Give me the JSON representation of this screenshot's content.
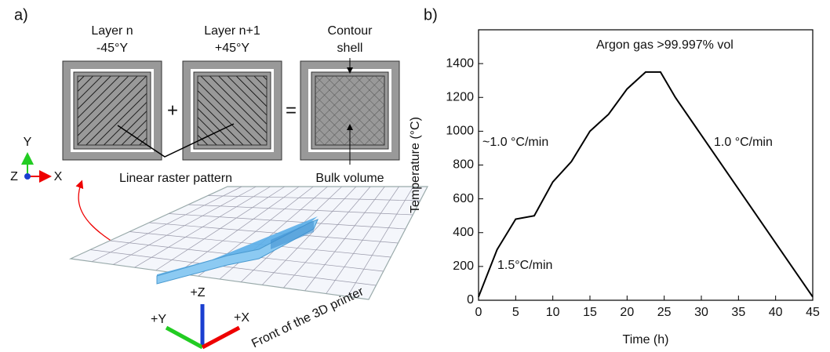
{
  "panel_labels": [
    "a)",
    "b)"
  ],
  "diagram": {
    "layers": [
      {
        "title": "Layer n",
        "angle": "-45°Y"
      },
      {
        "title": "Layer n+1",
        "angle": "+45°Y"
      },
      {
        "title": "Contour",
        "angle": "shell"
      }
    ],
    "operators": [
      "+",
      "="
    ],
    "raster_label": "Linear raster pattern",
    "bulk_label": "Bulk volume",
    "view_axes": [
      "Y",
      "Z",
      "X"
    ],
    "printer_axes": [
      "+Z",
      "+Y",
      "+X"
    ],
    "printer_label": "Front of the 3D printer"
  },
  "chart_data": {
    "type": "line",
    "x": [
      0,
      2.5,
      5,
      7.5,
      10,
      12.5,
      15,
      17.5,
      20,
      22.5,
      24.5,
      26.5,
      45
    ],
    "values": [
      20,
      300,
      480,
      500,
      700,
      820,
      1000,
      1100,
      1250,
      1350,
      1350,
      1200,
      20
    ],
    "color": "#000000",
    "xlabel": "Time (h)",
    "ylabel": "Temperature (°C)",
    "xlim": [
      0,
      45
    ],
    "ylim": [
      0,
      1600
    ],
    "xticks": [
      0,
      5,
      10,
      15,
      20,
      25,
      30,
      35,
      40,
      45
    ],
    "yticks": [
      0,
      200,
      400,
      600,
      800,
      1000,
      1200,
      1400
    ],
    "annotations": [
      "Argon gas >99.997% vol",
      "~1.0 °C/min",
      "1.0 °C/min",
      "1.5°C/min"
    ]
  }
}
